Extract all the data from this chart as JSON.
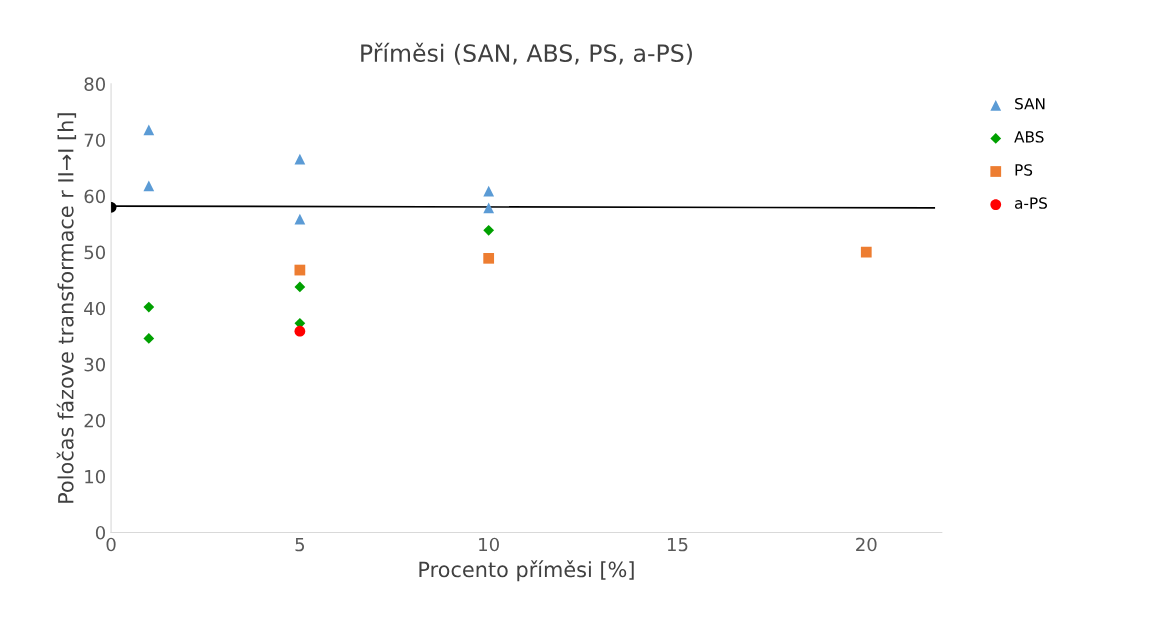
{
  "chart_data": {
    "type": "scatter",
    "title": "Příměsi (SAN, ABS, PS, a-PS)",
    "xlabel": "Procento příměsi [%]",
    "ylabel": "Poločas fázove transformace r II→I [h]",
    "xlim": [
      0,
      22
    ],
    "xticks": [
      0,
      5,
      10,
      15,
      20
    ],
    "ylim": [
      0,
      80
    ],
    "yticks": [
      0,
      10,
      20,
      30,
      40,
      50,
      60,
      70,
      80
    ],
    "grid": false,
    "legend": "right",
    "series": [
      {
        "name": "SAN",
        "color": "#5b9bd5",
        "marker": "triangle",
        "x": [
          1,
          1,
          5,
          5,
          10,
          10
        ],
        "values": [
          71.8,
          61.8,
          66.6,
          55.9,
          60.9,
          57.9
        ]
      },
      {
        "name": "ABS",
        "color": "#00a000",
        "marker": "diamond",
        "x": [
          1,
          1,
          5,
          5,
          10
        ],
        "values": [
          40.2,
          34.6,
          43.8,
          37.3,
          53.9
        ]
      },
      {
        "name": "PS",
        "color": "#ed7d31",
        "marker": "square",
        "x": [
          5,
          10,
          20
        ],
        "values": [
          46.8,
          48.9,
          50.0
        ]
      },
      {
        "name": "a-PS",
        "color": "#ff0000",
        "marker": "circle",
        "x": [
          5
        ],
        "values": [
          35.9
        ]
      },
      {
        "color": "#000000",
        "marker": "circle",
        "x": [
          0
        ],
        "values": [
          58.0
        ]
      },
      {
        "type": "line",
        "color": "#000000",
        "marker": "none",
        "x": [
          0,
          21.8
        ],
        "values": [
          58.2,
          57.9
        ]
      }
    ]
  }
}
